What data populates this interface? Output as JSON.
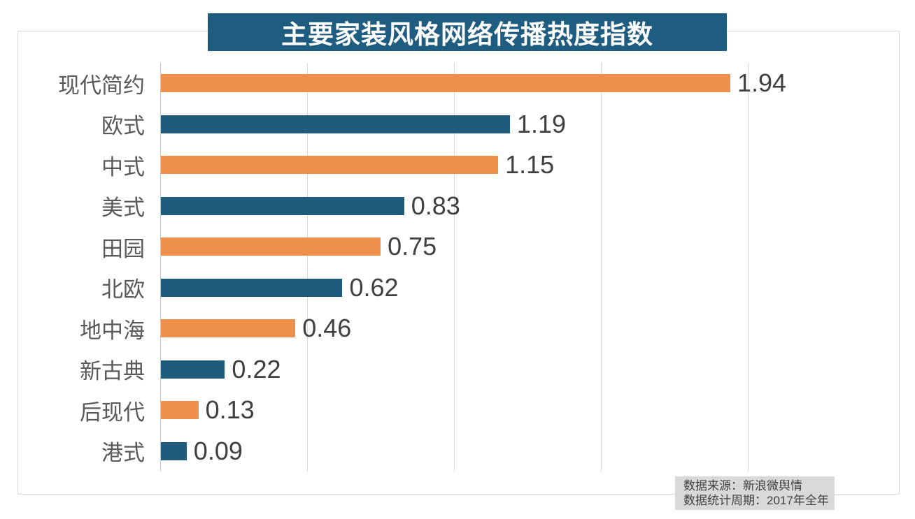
{
  "chart_data": {
    "type": "bar",
    "orientation": "horizontal",
    "title": "主要家装风格网络传播热度指数",
    "categories": [
      "现代简约",
      "欧式",
      "中式",
      "美式",
      "田园",
      "北欧",
      "地中海",
      "新古典",
      "后现代",
      "港式"
    ],
    "values": [
      1.94,
      1.19,
      1.15,
      0.83,
      0.75,
      0.62,
      0.46,
      0.22,
      0.13,
      0.09
    ],
    "value_labels": [
      "1.94",
      "1.19",
      "1.15",
      "0.83",
      "0.75",
      "0.62",
      "0.46",
      "0.22",
      "0.13",
      "0.09"
    ],
    "xlim": [
      0,
      2.5
    ],
    "gridline_values": [
      0.5,
      1.0,
      1.5,
      2.0
    ],
    "grid": true,
    "legend": "none",
    "bar_color_pattern": "alternating",
    "bar_colors": [
      "#ef8f4c",
      "#1f5c7c"
    ]
  },
  "colors": {
    "banner_bg": "#1e5c80",
    "title_text": "#ffffff",
    "orange_bar": "#ef8f4c",
    "blue_bar": "#1f5c7c",
    "gridline": "#d9d9d9",
    "axis_line": "#c8c8c8",
    "frame_border": "#d9d9d9",
    "category_text": "#595959",
    "value_text": "#404040",
    "source_bg": "#d9d9d9",
    "source_text": "#404040"
  },
  "source_note": {
    "line1": "数据来源：新浪微舆情",
    "line2": "数据统计周期：2017年全年"
  }
}
